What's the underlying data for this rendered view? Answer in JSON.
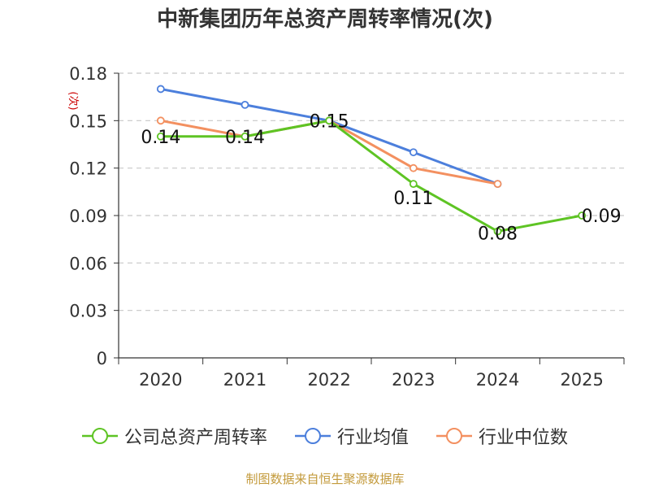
{
  "chart_data": {
    "type": "line",
    "title": "中新集团历年总资产周转率情况(次)",
    "ylabel": "(次)",
    "xlabel": "",
    "categories": [
      "2020",
      "2021",
      "2022",
      "2023",
      "2024",
      "2025"
    ],
    "ylim": [
      0,
      0.18
    ],
    "yticks": [
      "0",
      "0.03",
      "0.06",
      "0.09",
      "0.12",
      "0.15",
      "0.18"
    ],
    "grid": true,
    "legend_position": "bottom",
    "series": [
      {
        "name": "公司总资产周转率",
        "color": "#5ec424",
        "values": [
          0.14,
          0.14,
          0.15,
          0.11,
          0.08,
          0.09
        ],
        "labels": [
          "0.14",
          "0.14",
          "0.15",
          "0.11",
          "0.08",
          "0.09"
        ]
      },
      {
        "name": "行业均值",
        "color": "#4c7fdc",
        "values": [
          0.17,
          0.16,
          0.15,
          0.13,
          0.11,
          null
        ]
      },
      {
        "name": "行业中位数",
        "color": "#f39060",
        "values": [
          0.15,
          0.14,
          0.15,
          0.12,
          0.11,
          null
        ]
      }
    ]
  },
  "source": "制图数据来自恒生聚源数据库"
}
